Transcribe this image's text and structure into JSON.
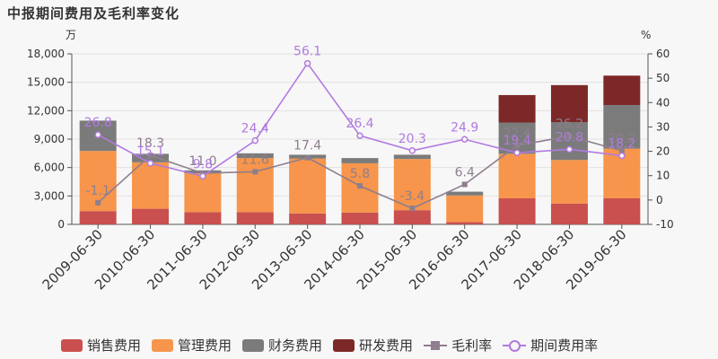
{
  "title": "中报期间费用及毛利率变化",
  "chart_data": {
    "type": "bar",
    "title": "中报期间费用及毛利率变化",
    "stacked": true,
    "y_left_unit": "万",
    "y_right_unit": "%",
    "ylim_left": [
      0,
      18000
    ],
    "ylim_right": [
      -10,
      60
    ],
    "yticks_left": [
      "0",
      "3,000",
      "6,000",
      "9,000",
      "12,000",
      "15,000",
      "18,000"
    ],
    "yticks_right": [
      "-10",
      "0",
      "10",
      "20",
      "30",
      "40",
      "50",
      "60"
    ],
    "grid": true,
    "legend_position": "bottom",
    "categories": [
      "2009-06-30",
      "2010-06-30",
      "2011-06-30",
      "2012-06-30",
      "2013-06-30",
      "2014-06-30",
      "2015-06-30",
      "2016-06-30",
      "2017-06-30",
      "2018-06-30",
      "2019-06-30"
    ],
    "series": [
      {
        "name": "销售费用",
        "kind": "bar",
        "color": "#c9504f",
        "values": [
          1400,
          1650,
          1300,
          1300,
          1150,
          1250,
          1500,
          250,
          2750,
          2200,
          2750
        ]
      },
      {
        "name": "管理费用",
        "kind": "bar",
        "color": "#f6954b",
        "values": [
          6350,
          4900,
          4100,
          5700,
          5800,
          5200,
          5400,
          2800,
          4700,
          4600,
          5250
        ]
      },
      {
        "name": "财务费用",
        "kind": "bar",
        "color": "#7b7b7b",
        "values": [
          3200,
          900,
          300,
          500,
          400,
          550,
          450,
          400,
          3300,
          4000,
          4600
        ]
      },
      {
        "name": "研发费用",
        "kind": "bar",
        "color": "#7d2828",
        "values": [
          0,
          0,
          0,
          0,
          0,
          0,
          0,
          0,
          2900,
          3900,
          3100
        ]
      },
      {
        "name": "毛利率",
        "kind": "line",
        "axis": "right",
        "color": "#8e7e8e",
        "values": [
          -1.1,
          18.3,
          11.0,
          11.6,
          17.4,
          5.8,
          -3.4,
          6.4,
          22.4,
          26.2,
          20.2
        ],
        "labels": [
          "-1.1",
          "18.3",
          "11.0",
          "11.6",
          "17.4",
          "5.8",
          "-3.4",
          "6.4",
          "22.4",
          "26.2",
          "20.2"
        ]
      },
      {
        "name": "期间费用率",
        "kind": "line",
        "axis": "right",
        "color": "#b17ae0",
        "values": [
          26.8,
          15.1,
          9.8,
          24.4,
          56.1,
          26.4,
          20.3,
          24.9,
          19.4,
          20.8,
          18.2
        ],
        "labels": [
          "26.8",
          "15.1",
          "9.8",
          "24.4",
          "56.1",
          "26.4",
          "20.3",
          "24.9",
          "19.4",
          "20.8",
          "18.2"
        ]
      }
    ]
  },
  "legend": [
    "销售费用",
    "管理费用",
    "财务费用",
    "研发费用",
    "毛利率",
    "期间费用率"
  ]
}
